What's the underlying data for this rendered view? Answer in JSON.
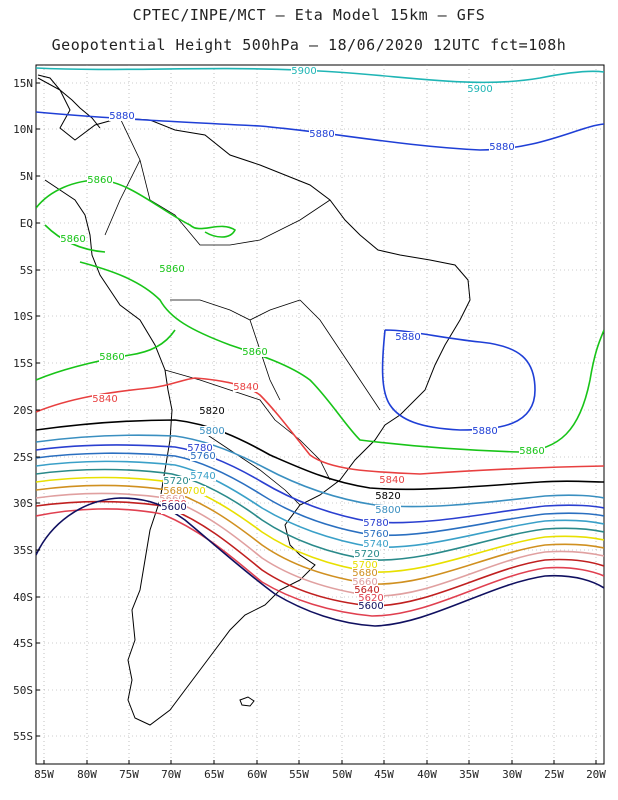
{
  "title_line1": "CPTEC/INPE/MCT –  Eta Model 15km – GFS",
  "title_line2": "Geopotential Height 500hPa – 18/06/2020 12UTC fct=108h",
  "lat_labels": [
    "15N",
    "10N",
    "5N",
    "EQ",
    "5S",
    "10S",
    "15S",
    "20S",
    "25S",
    "30S",
    "35S",
    "40S",
    "45S",
    "50S",
    "55S"
  ],
  "lon_labels": [
    "85W",
    "80W",
    "75W",
    "70W",
    "65W",
    "60W",
    "55W",
    "50W",
    "45W",
    "40W",
    "35W",
    "30W",
    "25W",
    "20W"
  ],
  "contours": [
    {
      "value": "5900",
      "color": "#1fb5b5"
    },
    {
      "value": "5880",
      "color": "#1f3fd6"
    },
    {
      "value": "5860",
      "color": "#18c418"
    },
    {
      "value": "5840",
      "color": "#e84040"
    },
    {
      "value": "5820",
      "color": "#000000"
    },
    {
      "value": "5800",
      "color": "#3a8fc0"
    },
    {
      "value": "5780",
      "color": "#2a3fd0"
    },
    {
      "value": "5760",
      "color": "#2a6fc0"
    },
    {
      "value": "5740",
      "color": "#3aa0c8"
    },
    {
      "value": "5720",
      "color": "#2a8a8a"
    },
    {
      "value": "5700",
      "color": "#e8e000"
    },
    {
      "value": "5680",
      "color": "#d09020"
    },
    {
      "value": "5660",
      "color": "#e0a0a0"
    },
    {
      "value": "5640",
      "color": "#c02020"
    },
    {
      "value": "5620",
      "color": "#e04050"
    },
    {
      "value": "5600",
      "color": "#101060"
    }
  ]
}
